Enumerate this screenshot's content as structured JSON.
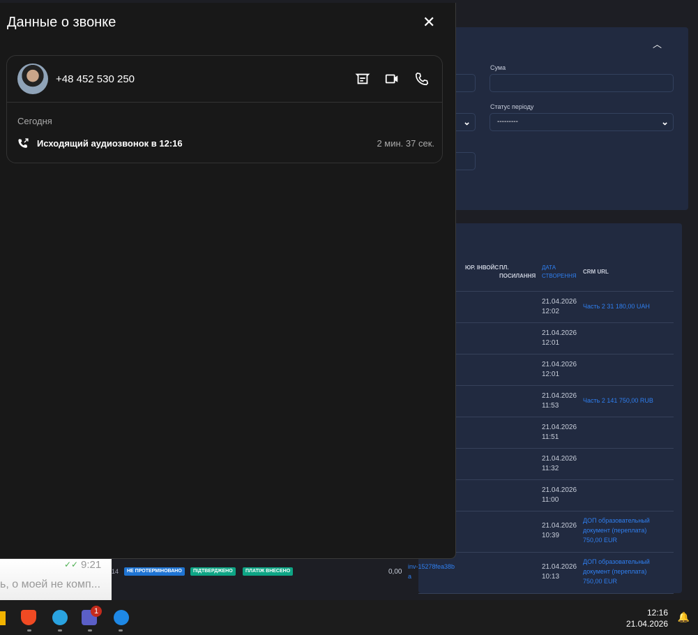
{
  "modal": {
    "title": "Данные о звонке",
    "close_icon": "close-icon",
    "phone": "+48 452 530 250",
    "day": "Сегодня",
    "call_text": "Исходящий аудиозвонок в 12:16",
    "duration": "2 мин. 37 сек."
  },
  "filters": {
    "sum_label": "Сума",
    "period_status_label": "Статус періоду",
    "period_status_value": "---------"
  },
  "table": {
    "headers": [
      "ЮР. ІНВОЙС",
      "ПЛ. ПОСИЛАННЯ",
      "ДАТА СТВОРЕННЯ",
      "CRM URL"
    ],
    "rows": [
      {
        "date": "21.04.2026",
        "time": "12:02",
        "crm": "Часть 2 31 180,00 UAH"
      },
      {
        "date": "21.04.2026",
        "time": "12:01",
        "crm": ""
      },
      {
        "date": "21.04.2026",
        "time": "12:01",
        "crm": ""
      },
      {
        "date": "21.04.2026",
        "time": "11:53",
        "crm": "Часть 2 141 750,00 RUB"
      },
      {
        "date": "21.04.2026",
        "time": "11:51",
        "crm": ""
      },
      {
        "date": "21.04.2026",
        "time": "11:32",
        "crm": ""
      },
      {
        "date": "21.04.2026",
        "time": "11:00",
        "crm": ""
      },
      {
        "date": "21.04.2026",
        "time": "10:39",
        "crm": "ДОП образовательный документ (переплата) 750,00 EUR"
      },
      {
        "date": "21.04.2026",
        "time": "10:13",
        "crm": "ДОП образовательный документ (переплата) 750,00 EUR"
      }
    ],
    "partial_row": {
      "id_fragment": "14",
      "badges": [
        "НЕ ПРОТЕРМІНОВАНО",
        "ПІДТВЕРДЖЕНО",
        "ПЛАТІЖ ВНЕСЕНО"
      ],
      "amount": "0,00",
      "invoice": "inv-15278fea38ba"
    }
  },
  "notification": {
    "time": "9:21",
    "text": "ь, о моей не комп..."
  },
  "taskbar": {
    "teams_badge": "1",
    "clock_time": "12:16",
    "clock_date": "21.04.2026"
  },
  "colors": {
    "accent": "#2f7ff0",
    "badge_blue": "#1f74d3",
    "badge_green": "#0ea585"
  }
}
